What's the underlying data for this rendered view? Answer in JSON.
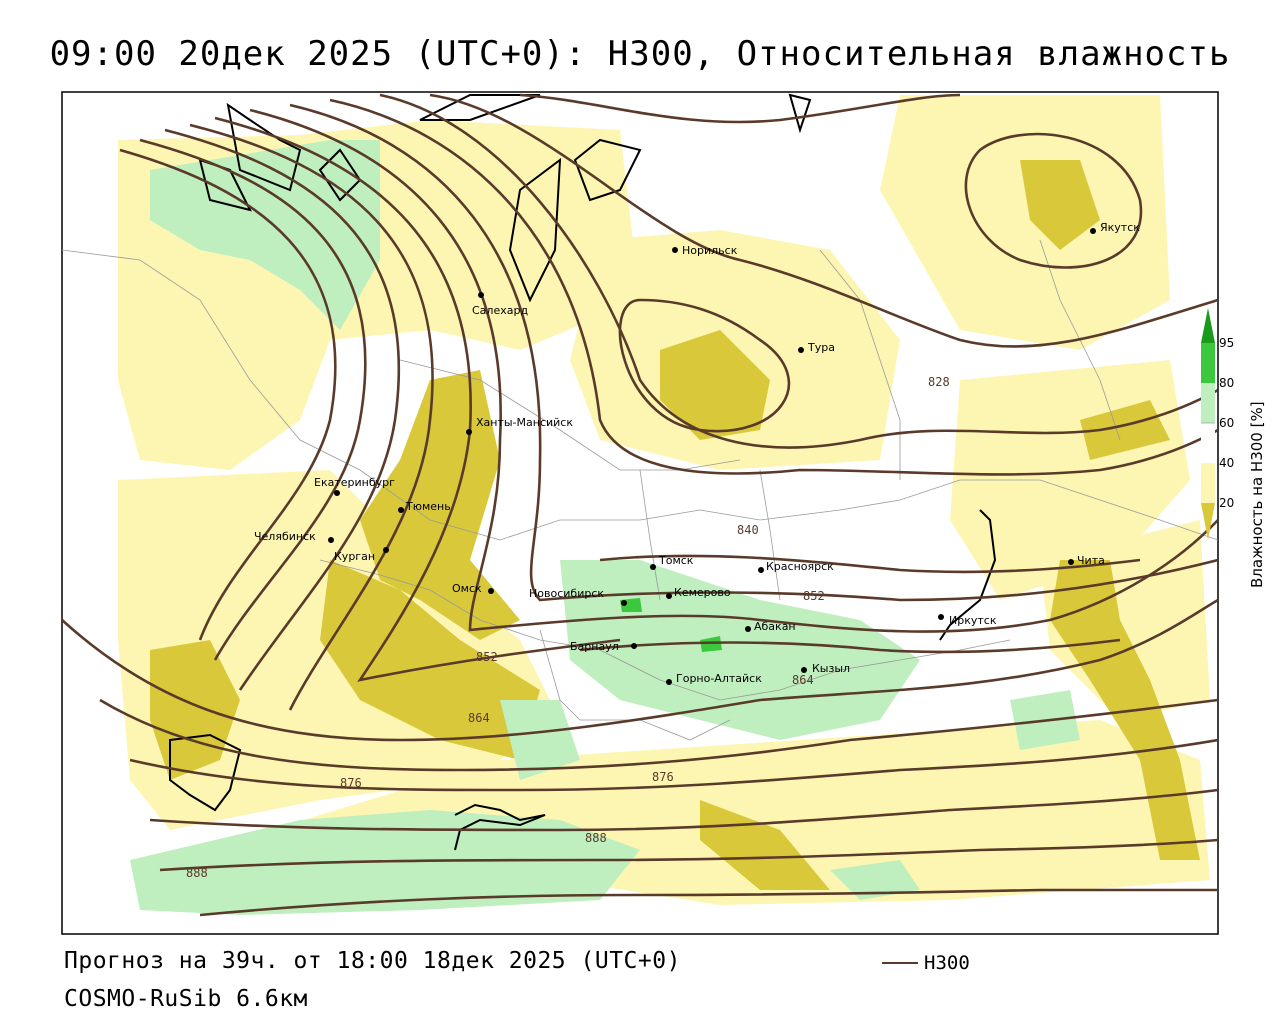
{
  "title": "09:00 20дек 2025 (UTC+0): H300, Относительная влажность",
  "footer": {
    "forecast": "Прогноз на 39ч. от 18:00 18дек 2025 (UTC+0)",
    "model": "COSMO-RuSib 6.6км",
    "legend_label": "H300"
  },
  "colorbar": {
    "title": "Влажность на H300 [%]",
    "levels": [
      {
        "label": "95",
        "color": "#1a9a1a"
      },
      {
        "label": "80",
        "color": "#3cc83c"
      },
      {
        "label": "60",
        "color": "#bfeebf"
      },
      {
        "label": "40",
        "color": "#ffffff"
      },
      {
        "label": "20",
        "color": "#fdf6b2"
      },
      {
        "label": "",
        "color": "#d8c83a"
      }
    ]
  },
  "cities": [
    {
      "name": "Норильск"
    },
    {
      "name": "Якутск"
    },
    {
      "name": "Салехард"
    },
    {
      "name": "Тура"
    },
    {
      "name": "Ханты-Мансийск"
    },
    {
      "name": "Екатеринбург"
    },
    {
      "name": "Тюмень"
    },
    {
      "name": "Челябинск"
    },
    {
      "name": "Курган"
    },
    {
      "name": "Омск"
    },
    {
      "name": "Новосибирск"
    },
    {
      "name": "Томск"
    },
    {
      "name": "Кемерово"
    },
    {
      "name": "Красноярск"
    },
    {
      "name": "Абакан"
    },
    {
      "name": "Барнаул"
    },
    {
      "name": "Горно-Алтайск"
    },
    {
      "name": "Кызыл"
    },
    {
      "name": "Иркутск"
    },
    {
      "name": "Чита"
    }
  ],
  "contour_labels": [
    "828",
    "840",
    "852",
    "852",
    "864",
    "864",
    "876",
    "876",
    "888",
    "888"
  ],
  "colors": {
    "contour": "#5a3a2a",
    "humidity_low": "#fdf6b2",
    "humidity_dry": "#d8c83a",
    "humidity_moist": "#bfeebf",
    "humidity_wet": "#3cc83c"
  }
}
